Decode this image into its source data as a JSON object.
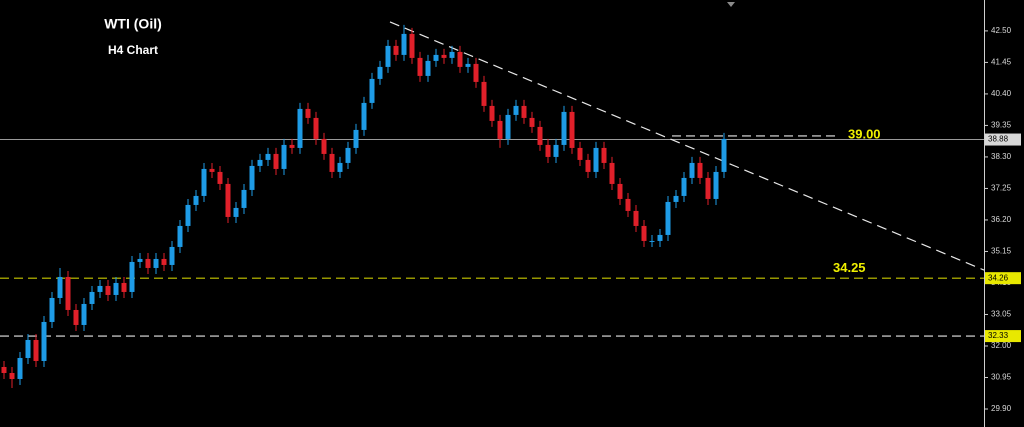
{
  "chart_data": {
    "type": "candlestick",
    "title": "WTI (Oil)",
    "subtitle": "H4 Chart",
    "up_color": "#1e9be6",
    "down_color": "#e0202a",
    "xlim": [
      -0.5,
      122.5
    ],
    "ylim": [
      29.3,
      43.53
    ],
    "yticks": [
      {
        "value": 29.9,
        "label": "29.90"
      },
      30.95,
      {
        "value": 32,
        "label": "32.00"
      },
      33.05,
      {
        "value": 34.1,
        "label": "34.10"
      },
      35.15,
      {
        "value": 36.2,
        "label": "36.20"
      },
      37.25,
      {
        "value": 38.3,
        "label": "38.30"
      },
      39.35,
      {
        "value": 40.4,
        "label": "40.40"
      },
      41.45,
      {
        "value": 42.5,
        "label": "42.50"
      }
    ],
    "grid": false,
    "open": [
      31.3,
      31.1,
      30.9,
      31.6,
      32.2,
      31.5,
      32.8,
      33.6,
      34.3,
      33.2,
      32.7,
      33.4,
      33.8,
      34.0,
      33.7,
      34.1,
      33.8,
      34.8,
      34.9,
      34.6,
      34.9,
      34.7,
      35.3,
      36.0,
      36.7,
      37.0,
      37.9,
      37.8,
      37.4,
      36.3,
      36.6,
      37.2,
      38.0,
      38.2,
      38.4,
      37.9,
      38.7,
      38.6,
      39.9,
      39.6,
      38.9,
      38.4,
      37.8,
      38.1,
      38.6,
      39.2,
      40.1,
      40.9,
      41.3,
      42.0,
      41.7,
      42.4,
      41.6,
      41.0,
      41.5,
      41.7,
      41.6,
      41.8,
      41.3,
      41.4,
      40.8,
      40.0,
      39.5,
      38.9,
      39.7,
      40.0,
      39.6,
      39.3,
      38.7,
      38.3,
      38.7,
      39.8,
      38.6,
      38.2,
      37.8,
      38.6,
      38.1,
      37.4,
      36.9,
      36.5,
      36.0,
      35.5,
      35.5,
      35.7,
      36.8,
      37.0,
      37.6,
      38.1,
      37.6,
      36.9,
      37.8
    ],
    "high": [
      31.5,
      31.3,
      31.8,
      32.4,
      32.4,
      33.0,
      33.8,
      34.6,
      34.5,
      33.4,
      33.6,
      34.0,
      34.2,
      34.2,
      34.3,
      34.3,
      35.0,
      35.1,
      35.1,
      35.1,
      35.1,
      35.5,
      36.2,
      36.9,
      37.2,
      38.1,
      38.1,
      38.0,
      37.6,
      36.8,
      37.4,
      38.2,
      38.4,
      38.6,
      38.6,
      38.9,
      38.9,
      40.1,
      40.1,
      39.8,
      39.1,
      38.6,
      38.3,
      38.8,
      39.4,
      40.3,
      41.1,
      41.5,
      42.2,
      42.2,
      42.7,
      42.6,
      41.8,
      41.7,
      41.9,
      41.9,
      42.0,
      42.0,
      41.6,
      41.6,
      41.0,
      40.2,
      39.7,
      39.9,
      40.2,
      40.2,
      39.8,
      39.5,
      38.9,
      38.9,
      40.0,
      40.0,
      38.8,
      38.4,
      38.8,
      38.8,
      38.3,
      37.6,
      37.1,
      36.7,
      36.2,
      35.7,
      35.9,
      37.0,
      37.2,
      37.8,
      38.3,
      38.3,
      37.8,
      38.0,
      39.1
    ],
    "low": [
      30.9,
      30.6,
      30.7,
      31.4,
      31.3,
      31.3,
      32.6,
      33.4,
      33.0,
      32.5,
      32.5,
      33.2,
      33.6,
      33.5,
      33.5,
      33.6,
      33.6,
      34.6,
      34.4,
      34.4,
      34.5,
      34.5,
      35.1,
      35.8,
      36.5,
      36.8,
      37.6,
      37.2,
      36.1,
      36.1,
      36.4,
      37.0,
      37.8,
      38.0,
      37.7,
      37.7,
      38.4,
      38.4,
      39.4,
      38.7,
      38.2,
      37.6,
      37.6,
      37.9,
      38.4,
      39.0,
      39.9,
      40.7,
      41.1,
      41.5,
      41.5,
      41.4,
      40.8,
      40.8,
      41.3,
      41.4,
      41.4,
      41.1,
      41.1,
      40.6,
      39.8,
      39.3,
      38.6,
      38.7,
      39.5,
      39.4,
      39.1,
      38.5,
      38.1,
      38.1,
      38.5,
      38.4,
      38.0,
      37.6,
      37.6,
      37.9,
      37.2,
      36.7,
      36.3,
      35.8,
      35.3,
      35.3,
      35.3,
      35.5,
      36.6,
      36.8,
      37.4,
      37.4,
      36.7,
      36.7,
      37.6
    ],
    "close": [
      31.1,
      30.9,
      31.6,
      32.2,
      31.5,
      32.8,
      33.6,
      34.3,
      33.2,
      32.7,
      33.4,
      33.8,
      34.0,
      33.7,
      34.1,
      33.8,
      34.8,
      34.9,
      34.6,
      34.9,
      34.7,
      35.3,
      36.0,
      36.7,
      37.0,
      37.9,
      37.8,
      37.4,
      36.3,
      36.6,
      37.2,
      38.0,
      38.2,
      38.4,
      37.9,
      38.7,
      38.6,
      39.9,
      39.6,
      38.9,
      38.4,
      37.8,
      38.1,
      38.6,
      39.2,
      40.1,
      40.9,
      41.3,
      42.0,
      41.7,
      42.4,
      41.6,
      41.0,
      41.5,
      41.7,
      41.6,
      41.8,
      41.3,
      41.4,
      40.8,
      40.0,
      39.5,
      38.9,
      39.7,
      40.0,
      39.6,
      39.3,
      38.7,
      38.3,
      38.7,
      39.8,
      38.6,
      38.2,
      37.8,
      38.6,
      38.1,
      37.4,
      36.9,
      36.5,
      36.0,
      35.5,
      35.5,
      35.7,
      36.8,
      37.0,
      37.6,
      38.1,
      37.6,
      36.9,
      37.8,
      38.9
    ],
    "price_line": {
      "value": 38.88,
      "label": "38.88",
      "color": "#9a9a9a"
    },
    "levels": [
      {
        "value": 34.26,
        "label": "34.26",
        "color": "#c8c800"
      },
      {
        "value": 32.33,
        "label": "32.33",
        "color": "#e8e8e8"
      }
    ],
    "annotations": [
      {
        "text": "39.00",
        "value": 39.0
      },
      {
        "text": "34.25",
        "value": 34.25
      }
    ],
    "trendline": {
      "x": [
        48.25,
        122.5
      ],
      "y": [
        42.8,
        34.53
      ],
      "color": "#e8e8e8"
    }
  }
}
